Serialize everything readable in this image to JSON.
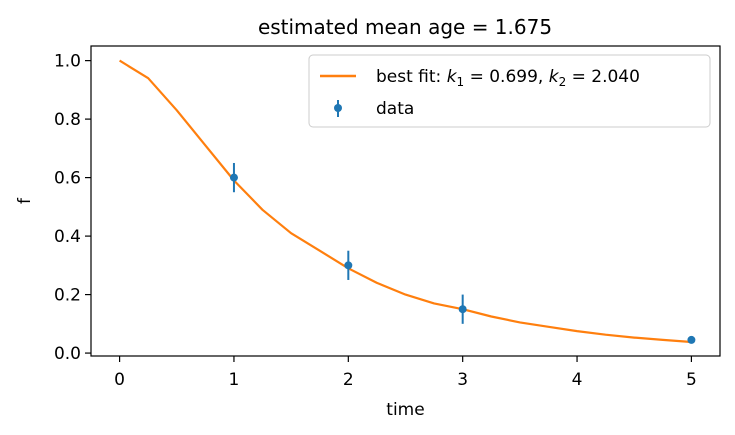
{
  "chart_data": {
    "type": "line",
    "title": "estimated mean age = 1.675",
    "xlabel": "time",
    "ylabel": "f",
    "xlim": [
      -0.25,
      5.25
    ],
    "ylim": [
      -0.01,
      1.05
    ],
    "xticks": [
      0,
      1,
      2,
      3,
      4,
      5
    ],
    "yticks": [
      0.0,
      0.2,
      0.4,
      0.6,
      0.8,
      1.0
    ],
    "xtick_labels": [
      "0",
      "1",
      "2",
      "3",
      "4",
      "5"
    ],
    "ytick_labels": [
      "0.0",
      "0.2",
      "0.4",
      "0.6",
      "0.8",
      "1.0"
    ],
    "grid": false,
    "legend_position": "top-right",
    "series": [
      {
        "name": "best fit: k1 = 0.699, k2 = 2.040",
        "kind": "line",
        "color": "#ff7f0e",
        "k1": 0.699,
        "k2": 2.04,
        "x": [
          0,
          0.25,
          0.5,
          0.75,
          1,
          1.25,
          1.5,
          1.75,
          2,
          2.25,
          2.5,
          2.75,
          3,
          3.25,
          3.5,
          3.75,
          4,
          4.25,
          4.5,
          4.75,
          5
        ],
        "y": [
          1.0,
          0.94,
          0.83,
          0.71,
          0.59,
          0.49,
          0.41,
          0.35,
          0.29,
          0.24,
          0.2,
          0.17,
          0.15,
          0.125,
          0.105,
          0.09,
          0.075,
          0.063,
          0.053,
          0.045,
          0.038
        ]
      },
      {
        "name": "data",
        "kind": "errorbar",
        "color": "#1f77b4",
        "x": [
          1,
          2,
          3,
          5
        ],
        "y": [
          0.6,
          0.3,
          0.15,
          0.045
        ],
        "yerr": [
          0.05,
          0.05,
          0.05,
          0.0
        ]
      }
    ],
    "legend": {
      "fit_prefix": "best fit: ",
      "k1_symbol": "k",
      "k1_sub": "1",
      "k1_value": " = 0.699, ",
      "k2_symbol": "k",
      "k2_sub": "2",
      "k2_value": " = 2.040",
      "data_label": "data"
    }
  }
}
